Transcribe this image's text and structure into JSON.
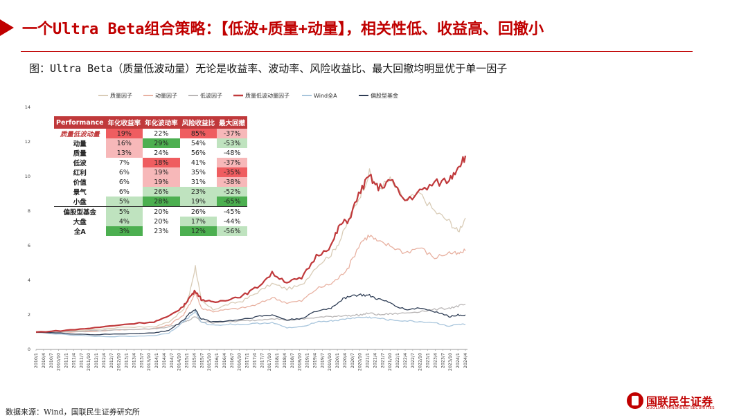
{
  "title": "一个Ultra Beta组合策略：【低波+质量+动量】，相关性低、收益高、回撤小",
  "subtitle": "图：Ultra Beta（质量低波动量）无论是收益率、波动率、风险收益比、最大回撤均明显优于单一因子",
  "source": "数据来源：Wind，国联民生证券研究所",
  "logo": {
    "cn": "国联民生证券",
    "en": "GUOLIAN MINSHENG SECURITIES"
  },
  "colors": {
    "accent": "#c00000",
    "table_header": "#c0393b",
    "good_strong": "#4caf50",
    "good_light": "#bfe3bf",
    "bad_strong": "#ef5d60",
    "bad_light": "#f7b8b9"
  },
  "table": {
    "headers": [
      "Performance",
      "年化收益率",
      "年化波动率",
      "风险收益比",
      "最大回撤"
    ],
    "rows": [
      {
        "name": "质量低波动量",
        "highlight": true,
        "values": [
          "19%",
          "22%",
          "85%",
          "-37%"
        ],
        "shades": [
          "r2",
          "w",
          "r2",
          "r1"
        ]
      },
      {
        "name": "动量",
        "values": [
          "16%",
          "29%",
          "54%",
          "-53%"
        ],
        "shades": [
          "r1",
          "g2",
          "w",
          "g1"
        ]
      },
      {
        "name": "质量",
        "values": [
          "13%",
          "24%",
          "56%",
          "-48%"
        ],
        "shades": [
          "r1",
          "w",
          "w",
          "w"
        ]
      },
      {
        "name": "低波",
        "values": [
          "7%",
          "18%",
          "41%",
          "-37%"
        ],
        "shades": [
          "w",
          "r2",
          "w",
          "r1"
        ]
      },
      {
        "name": "红利",
        "values": [
          "6%",
          "19%",
          "35%",
          "-35%"
        ],
        "shades": [
          "w",
          "r1",
          "w",
          "r2"
        ]
      },
      {
        "name": "价值",
        "values": [
          "6%",
          "19%",
          "31%",
          "-38%"
        ],
        "shades": [
          "w",
          "r1",
          "w",
          "r1"
        ]
      },
      {
        "name": "景气",
        "values": [
          "6%",
          "26%",
          "23%",
          "-52%"
        ],
        "shades": [
          "w",
          "g1",
          "g1",
          "g1"
        ]
      },
      {
        "name": "小盘",
        "values": [
          "5%",
          "28%",
          "19%",
          "-65%"
        ],
        "shades": [
          "g1",
          "g2",
          "g1",
          "g2"
        ]
      },
      {
        "name": "偏股型基金",
        "sep": true,
        "values": [
          "5%",
          "20%",
          "26%",
          "-45%"
        ],
        "shades": [
          "g1",
          "w",
          "w",
          "w"
        ]
      },
      {
        "name": "大盘",
        "values": [
          "4%",
          "20%",
          "17%",
          "-44%"
        ],
        "shades": [
          "g1",
          "w",
          "g1",
          "w"
        ]
      },
      {
        "name": "全A",
        "values": [
          "3%",
          "23%",
          "12%",
          "-56%"
        ],
        "shades": [
          "g2",
          "w",
          "g2",
          "g1"
        ]
      }
    ]
  },
  "chart_data": {
    "type": "line",
    "ylim": [
      0,
      14
    ],
    "yticks": [
      "0",
      "2",
      "4",
      "6",
      "8",
      "10",
      "12",
      "14"
    ],
    "grid": false,
    "legend_placement": "top",
    "xlabels": [
      "2010/1",
      "2010/4",
      "2010/7",
      "2010/10",
      "2011/1",
      "2011/4",
      "2011/7",
      "2011/10",
      "2012/1",
      "2012/4",
      "2012/7",
      "2012/10",
      "2013/1",
      "2013/4",
      "2013/7",
      "2013/10",
      "2014/1",
      "2014/4",
      "2014/7",
      "2014/10",
      "2015/1",
      "2015/4",
      "2015/7",
      "2015/10",
      "2016/1",
      "2016/4",
      "2016/7",
      "2016/10",
      "2017/1",
      "2017/4",
      "2017/7",
      "2017/10",
      "2018/1",
      "2018/4",
      "2018/7",
      "2018/10",
      "2019/1",
      "2019/4",
      "2019/7",
      "2019/10",
      "2020/1",
      "2020/4",
      "2020/7",
      "2020/10",
      "2021/1",
      "2021/4",
      "2021/7",
      "2021/10",
      "2022/1",
      "2022/4",
      "2022/7",
      "2022/10",
      "2023/1",
      "2023/4",
      "2023/7",
      "2023/10",
      "2024/1",
      "2024/4"
    ],
    "x": [
      2010.0,
      2011.0,
      2012.0,
      2013.0,
      2014.0,
      2014.5,
      2015.0,
      2015.2,
      2015.4,
      2015.6,
      2016.0,
      2016.5,
      2017.0,
      2017.5,
      2018.0,
      2018.5,
      2019.0,
      2019.5,
      2020.0,
      2020.3,
      2020.6,
      2021.0,
      2021.3,
      2021.6,
      2022.0,
      2022.5,
      2023.0,
      2023.5,
      2024.0,
      2024.3,
      2024.55
    ],
    "series": [
      {
        "name": "质量因子",
        "color": "#d9ccb7",
        "values": [
          1.0,
          1.05,
          1.15,
          1.3,
          1.3,
          1.6,
          2.3,
          3.2,
          4.8,
          2.8,
          2.3,
          2.6,
          2.8,
          3.3,
          3.8,
          3.5,
          3.7,
          4.8,
          5.5,
          6.3,
          7.5,
          9.0,
          10.2,
          9.3,
          9.8,
          8.6,
          9.0,
          8.0,
          7.4,
          6.8,
          7.6
        ]
      },
      {
        "name": "动量因子",
        "color": "#e8b1a1",
        "values": [
          1.0,
          1.0,
          1.05,
          1.15,
          1.2,
          1.4,
          2.0,
          2.6,
          3.3,
          2.4,
          2.2,
          2.3,
          2.4,
          2.6,
          3.0,
          2.7,
          2.8,
          3.5,
          3.8,
          4.2,
          4.8,
          6.2,
          6.6,
          6.2,
          6.0,
          5.6,
          5.9,
          5.3,
          5.6,
          5.5,
          5.7
        ]
      },
      {
        "name": "低波因子",
        "color": "#b9b6b6",
        "values": [
          1.0,
          1.02,
          1.08,
          1.15,
          1.2,
          1.3,
          1.55,
          1.7,
          1.9,
          1.6,
          1.55,
          1.6,
          1.65,
          1.7,
          1.8,
          1.7,
          1.75,
          1.85,
          1.9,
          1.95,
          1.95,
          2.0,
          2.1,
          2.0,
          2.05,
          2.1,
          2.2,
          2.3,
          2.4,
          2.5,
          2.6
        ]
      },
      {
        "name": "质量低波动量因子",
        "color": "#c0393b",
        "values": [
          1.0,
          1.1,
          1.25,
          1.45,
          1.6,
          1.9,
          2.5,
          3.0,
          3.4,
          2.9,
          2.7,
          2.9,
          3.1,
          3.6,
          4.4,
          3.9,
          4.1,
          5.4,
          6.0,
          7.2,
          7.5,
          9.2,
          10.0,
          9.3,
          9.8,
          8.6,
          9.1,
          9.6,
          9.8,
          10.6,
          11.2
        ]
      },
      {
        "name": "Wind全A",
        "color": "#a8c5dc",
        "values": [
          1.0,
          0.85,
          0.75,
          0.75,
          0.8,
          0.95,
          1.6,
          1.9,
          2.2,
          1.55,
          1.4,
          1.45,
          1.45,
          1.5,
          1.55,
          1.25,
          1.3,
          1.6,
          1.65,
          1.7,
          1.8,
          1.85,
          1.85,
          1.8,
          1.7,
          1.65,
          1.6,
          1.55,
          1.35,
          1.45,
          1.45
        ]
      },
      {
        "name": "偏股型基金",
        "color": "#2e3d55",
        "values": [
          1.0,
          0.92,
          0.85,
          0.9,
          0.95,
          1.1,
          1.7,
          2.1,
          2.3,
          1.75,
          1.6,
          1.65,
          1.75,
          1.9,
          2.0,
          1.7,
          1.8,
          2.2,
          2.4,
          2.8,
          3.1,
          3.15,
          3.1,
          2.9,
          2.7,
          2.3,
          2.4,
          2.2,
          1.9,
          2.0,
          2.0
        ]
      }
    ]
  }
}
